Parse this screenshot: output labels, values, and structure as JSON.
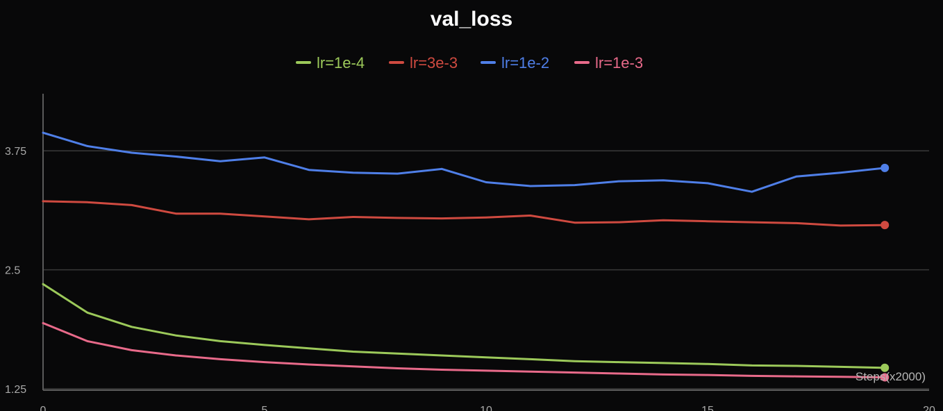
{
  "chart_data": {
    "type": "line",
    "title": "val_loss",
    "xlabel": "Steps(x2000)",
    "ylabel": "",
    "xlim": [
      0,
      20
    ],
    "ylim": [
      1.235,
      4.35
    ],
    "x_ticks": [
      0,
      5,
      10,
      15,
      20
    ],
    "y_ticks": [
      1.25,
      2.5,
      3.75
    ],
    "y_tick_labels": [
      "1.25",
      "2.5",
      "3.75"
    ],
    "grid": true,
    "legend_position": "top-center",
    "x": [
      0,
      1,
      2,
      3,
      4,
      5,
      6,
      7,
      8,
      9,
      10,
      11,
      12,
      13,
      14,
      15,
      16,
      17,
      18,
      19
    ],
    "series": [
      {
        "name": "lr=1e-4",
        "color": "#9cc95a",
        "values": [
          2.35,
          2.05,
          1.9,
          1.81,
          1.75,
          1.71,
          1.675,
          1.64,
          1.62,
          1.6,
          1.58,
          1.56,
          1.54,
          1.53,
          1.52,
          1.51,
          1.495,
          1.49,
          1.48,
          1.47
        ]
      },
      {
        "name": "lr=3e-3",
        "color": "#cf4a40",
        "values": [
          3.22,
          3.21,
          3.18,
          3.09,
          3.09,
          3.06,
          3.03,
          3.055,
          3.045,
          3.04,
          3.05,
          3.07,
          2.995,
          3.0,
          3.02,
          3.01,
          3.0,
          2.99,
          2.965,
          2.97
        ]
      },
      {
        "name": "lr=1e-2",
        "color": "#4f7fe8",
        "values": [
          3.94,
          3.8,
          3.73,
          3.69,
          3.64,
          3.68,
          3.55,
          3.52,
          3.51,
          3.56,
          3.42,
          3.38,
          3.39,
          3.43,
          3.44,
          3.41,
          3.32,
          3.48,
          3.52,
          3.57
        ]
      },
      {
        "name": "lr=1e-3",
        "color": "#e86a8a",
        "values": [
          1.94,
          1.75,
          1.655,
          1.6,
          1.56,
          1.53,
          1.505,
          1.485,
          1.465,
          1.45,
          1.44,
          1.43,
          1.42,
          1.41,
          1.4,
          1.395,
          1.385,
          1.38,
          1.375,
          1.37
        ]
      }
    ]
  }
}
